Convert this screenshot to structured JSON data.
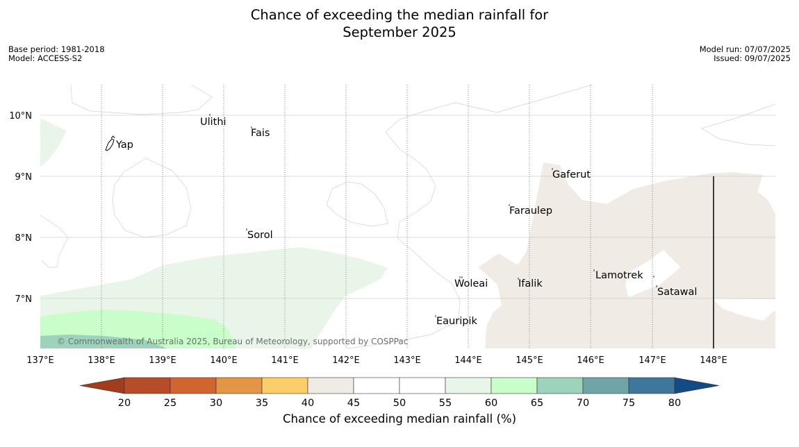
{
  "title": {
    "line1": "Chance of exceeding the median rainfall for",
    "line2": "September 2025"
  },
  "meta": {
    "base_period": "Base period: 1981-2018",
    "model": "Model: ACCESS-S2",
    "model_run": "Model run: 07/07/2025",
    "issued": "Issued: 09/07/2025"
  },
  "map": {
    "lon_ticks": [
      "137°E",
      "138°E",
      "139°E",
      "140°E",
      "141°E",
      "142°E",
      "143°E",
      "144°E",
      "145°E",
      "146°E",
      "147°E",
      "148°E"
    ],
    "lat_ticks": [
      "10°N",
      "9°N",
      "8°N",
      "7°N"
    ],
    "places": {
      "ulithi": "Ulithi",
      "fais": "Fais",
      "yap": "Yap",
      "gaferut": "Gaferut",
      "faraulep": "Faraulep",
      "sorol": "Sorol",
      "lamotrek": "Lamotrek",
      "woleai": "Woleai",
      "ifalik": "Ifalik",
      "satawal": "Satawal",
      "eauripik": "Eauripik"
    },
    "copyright": "© Commonwealth of Australia 2025, Bureau of Meteorology, supported by COSPPac"
  },
  "colorbar": {
    "ticks": [
      "20",
      "25",
      "30",
      "35",
      "40",
      "45",
      "50",
      "55",
      "60",
      "65",
      "70",
      "75",
      "80"
    ],
    "colors": [
      "#a23c1f",
      "#b84b28",
      "#d06530",
      "#e39444",
      "#fdcd68",
      "#f0ebe5",
      "#ffffff",
      "#ffffff",
      "#eaf5ea",
      "#c9fdc9",
      "#9dd2bc",
      "#6fa5a6",
      "#3f769c",
      "#134c84"
    ],
    "label": "Chance of exceeding median rainfall (%)"
  }
}
